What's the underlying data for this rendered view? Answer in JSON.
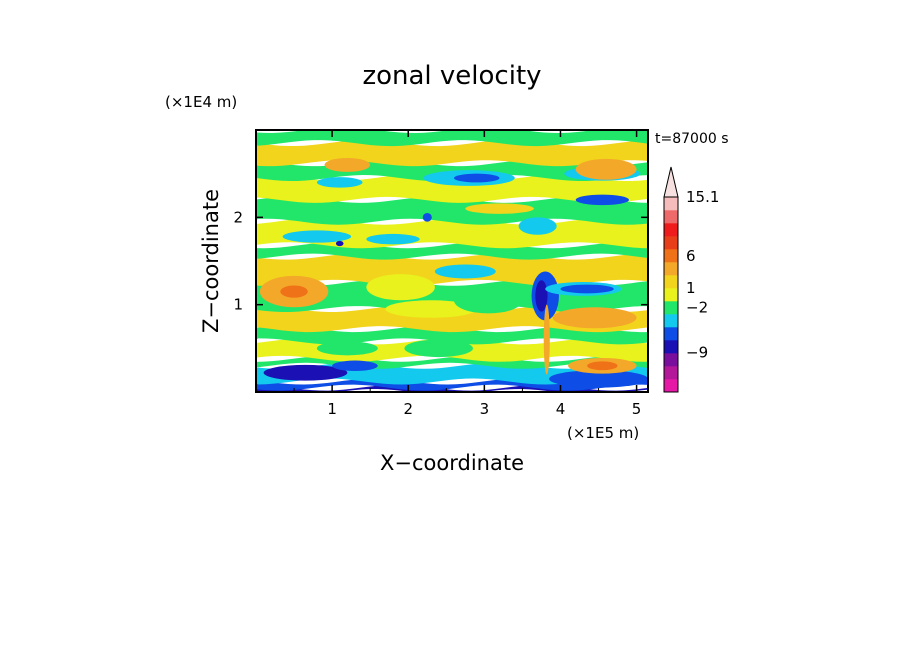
{
  "chart_data": {
    "type": "heatmap",
    "title": "zonal velocity",
    "xlabel": "X−coordinate",
    "ylabel": "Z−coordinate",
    "x_unit": "(×1E5 m)",
    "y_unit": "(×1E4 m)",
    "time_label": "t=87000 s",
    "xlim": [
      0,
      5.15
    ],
    "ylim": [
      0,
      3.0
    ],
    "x_ticks": [
      "1",
      "2",
      "3",
      "4",
      "5"
    ],
    "x_tick_values": [
      1,
      2,
      3,
      4,
      5
    ],
    "y_ticks": [
      "1",
      "2"
    ],
    "y_tick_values": [
      1,
      2
    ],
    "colorbar": {
      "labels": [
        {
          "text": "15.1",
          "value": 15.1
        },
        {
          "text": "6",
          "value": 6
        },
        {
          "text": "1",
          "value": 1
        },
        {
          "text": "−2",
          "value": -2
        },
        {
          "text": "−9",
          "value": -9
        }
      ],
      "colors": [
        "#e619a6",
        "#b3179a",
        "#7a0f9e",
        "#1a10b4",
        "#0e4ee6",
        "#13c9ee",
        "#22e66a",
        "#e9f21c",
        "#f2d41c",
        "#f3a82a",
        "#f07218",
        "#e83f1a",
        "#ee1c1c",
        "#ee6a6a",
        "#f6bcbc"
      ],
      "extend_top": true
    },
    "bands": [
      {
        "z0": 0.0,
        "z1": 0.05,
        "color": "#1a10b4"
      },
      {
        "z0": 0.05,
        "z1": 0.12,
        "color": "#0e4ee6"
      },
      {
        "z0": 0.12,
        "z1": 0.3,
        "color": "#13c9ee"
      },
      {
        "z0": 0.3,
        "z1": 0.38,
        "color": "#22e66a"
      },
      {
        "z0": 0.38,
        "z1": 0.58,
        "color": "#e9f21c"
      },
      {
        "z0": 0.58,
        "z1": 0.72,
        "color": "#22e66a"
      },
      {
        "z0": 0.72,
        "z1": 0.95,
        "color": "#f2d41c"
      },
      {
        "z0": 0.95,
        "z1": 1.25,
        "color": "#22e66a"
      },
      {
        "z0": 1.25,
        "z1": 1.55,
        "color": "#f2d41c"
      },
      {
        "z0": 1.55,
        "z1": 1.68,
        "color": "#22e66a"
      },
      {
        "z0": 1.68,
        "z1": 1.95,
        "color": "#e9f21c"
      },
      {
        "z0": 1.95,
        "z1": 2.2,
        "color": "#22e66a"
      },
      {
        "z0": 2.2,
        "z1": 2.45,
        "color": "#e9f21c"
      },
      {
        "z0": 2.45,
        "z1": 2.62,
        "color": "#22e66a"
      },
      {
        "z0": 2.62,
        "z1": 2.85,
        "color": "#f2d41c"
      },
      {
        "z0": 2.85,
        "z1": 3.0,
        "color": "#22e66a"
      }
    ],
    "patches": [
      {
        "x": 0.65,
        "z": 0.22,
        "rx": 0.55,
        "rz": 0.09,
        "color": "#1a10b4"
      },
      {
        "x": 1.3,
        "z": 0.3,
        "rx": 0.3,
        "rz": 0.06,
        "color": "#0e4ee6"
      },
      {
        "x": 4.5,
        "z": 0.15,
        "rx": 0.65,
        "rz": 0.1,
        "color": "#0e4ee6"
      },
      {
        "x": 4.55,
        "z": 0.3,
        "rx": 0.45,
        "rz": 0.09,
        "color": "#f3a82a"
      },
      {
        "x": 4.55,
        "z": 0.3,
        "rx": 0.2,
        "rz": 0.05,
        "color": "#f07218"
      },
      {
        "x": 4.45,
        "z": 0.85,
        "rx": 0.55,
        "rz": 0.12,
        "color": "#f3a82a"
      },
      {
        "x": 0.5,
        "z": 1.15,
        "rx": 0.45,
        "rz": 0.18,
        "color": "#f3a82a"
      },
      {
        "x": 0.5,
        "z": 1.15,
        "rx": 0.18,
        "rz": 0.07,
        "color": "#f07218"
      },
      {
        "x": 1.2,
        "z": 0.5,
        "rx": 0.4,
        "rz": 0.08,
        "color": "#22e66a"
      },
      {
        "x": 2.4,
        "z": 0.5,
        "rx": 0.45,
        "rz": 0.1,
        "color": "#22e66a"
      },
      {
        "x": 3.8,
        "z": 1.1,
        "rx": 0.18,
        "rz": 0.28,
        "color": "#0e4ee6"
      },
      {
        "x": 3.75,
        "z": 1.1,
        "rx": 0.08,
        "rz": 0.18,
        "color": "#1a10b4"
      },
      {
        "x": 4.3,
        "z": 1.18,
        "rx": 0.5,
        "rz": 0.08,
        "color": "#13c9ee"
      },
      {
        "x": 4.35,
        "z": 1.18,
        "rx": 0.35,
        "rz": 0.05,
        "color": "#0e4ee6"
      },
      {
        "x": 2.75,
        "z": 1.38,
        "rx": 0.4,
        "rz": 0.08,
        "color": "#13c9ee"
      },
      {
        "x": 0.8,
        "z": 1.78,
        "rx": 0.45,
        "rz": 0.07,
        "color": "#13c9ee"
      },
      {
        "x": 1.8,
        "z": 1.75,
        "rx": 0.35,
        "rz": 0.06,
        "color": "#13c9ee"
      },
      {
        "x": 3.7,
        "z": 1.9,
        "rx": 0.25,
        "rz": 0.1,
        "color": "#13c9ee"
      },
      {
        "x": 2.8,
        "z": 2.45,
        "rx": 0.6,
        "rz": 0.09,
        "color": "#13c9ee"
      },
      {
        "x": 2.9,
        "z": 2.45,
        "rx": 0.3,
        "rz": 0.05,
        "color": "#0e4ee6"
      },
      {
        "x": 1.1,
        "z": 2.4,
        "rx": 0.3,
        "rz": 0.06,
        "color": "#13c9ee"
      },
      {
        "x": 4.55,
        "z": 2.5,
        "rx": 0.5,
        "rz": 0.08,
        "color": "#13c9ee"
      },
      {
        "x": 4.55,
        "z": 2.2,
        "rx": 0.35,
        "rz": 0.06,
        "color": "#0e4ee6"
      },
      {
        "x": 4.6,
        "z": 2.55,
        "rx": 0.4,
        "rz": 0.12,
        "color": "#f3a82a"
      },
      {
        "x": 1.2,
        "z": 2.6,
        "rx": 0.3,
        "rz": 0.08,
        "color": "#f3a82a"
      },
      {
        "x": 3.2,
        "z": 2.1,
        "rx": 0.45,
        "rz": 0.06,
        "color": "#f2d41c"
      },
      {
        "x": 2.3,
        "z": 0.95,
        "rx": 0.6,
        "rz": 0.1,
        "color": "#e9f21c"
      },
      {
        "x": 3.05,
        "z": 1.05,
        "rx": 0.45,
        "rz": 0.15,
        "color": "#22e66a"
      },
      {
        "x": 1.9,
        "z": 1.2,
        "rx": 0.45,
        "rz": 0.15,
        "color": "#e9f21c"
      },
      {
        "x": 3.82,
        "z": 0.6,
        "rx": 0.04,
        "rz": 0.4,
        "color": "#f3a82a"
      },
      {
        "x": 1.1,
        "z": 1.7,
        "rx": 0.05,
        "rz": 0.03,
        "color": "#1a10b4"
      },
      {
        "x": 2.25,
        "z": 2.0,
        "rx": 0.06,
        "rz": 0.05,
        "color": "#0e4ee6"
      }
    ]
  }
}
